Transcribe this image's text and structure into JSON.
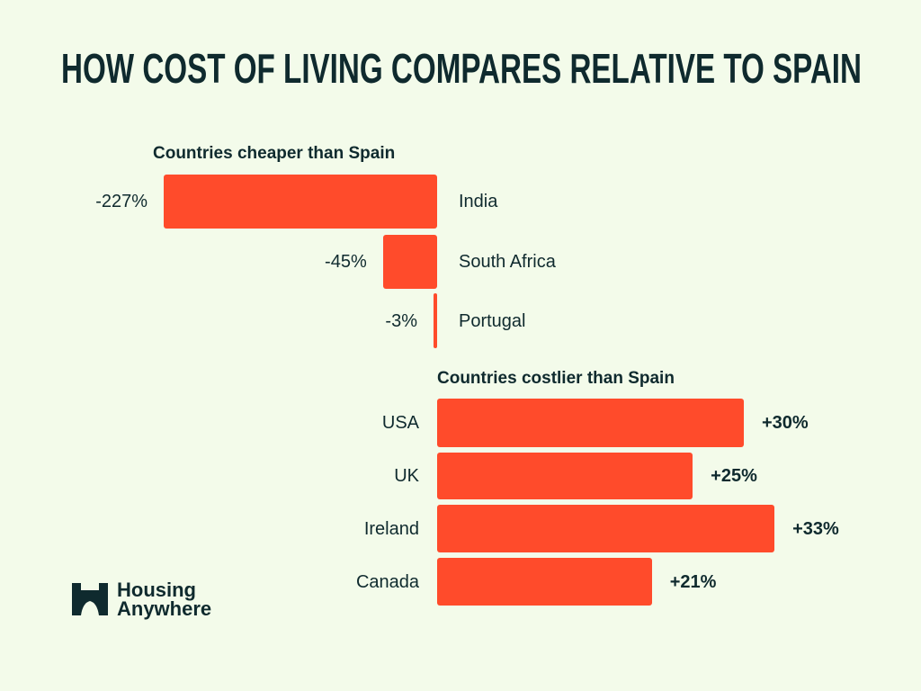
{
  "title": "HOW COST OF LIVING COMPARES RELATIVE TO SPAIN",
  "colors": {
    "background": "#f3fbea",
    "bar": "#ff4b2b",
    "text": "#0f2a2e"
  },
  "chart_data": [
    {
      "type": "bar",
      "orientation": "horizontal",
      "title": "Countries cheaper than Spain",
      "categories": [
        "India",
        "South Africa",
        "Portugal"
      ],
      "values": [
        -227,
        -45,
        -3
      ],
      "value_labels": [
        "-227%",
        "-45%",
        "-3%"
      ]
    },
    {
      "type": "bar",
      "orientation": "horizontal",
      "title": "Countries costlier than Spain",
      "categories": [
        "USA",
        "UK",
        "Ireland",
        "Canada"
      ],
      "values": [
        30,
        25,
        33,
        21
      ],
      "value_labels": [
        "+30%",
        "+25%",
        "+33%",
        "+21%"
      ]
    }
  ],
  "logo": {
    "line1": "Housing",
    "line2": "Anywhere"
  }
}
